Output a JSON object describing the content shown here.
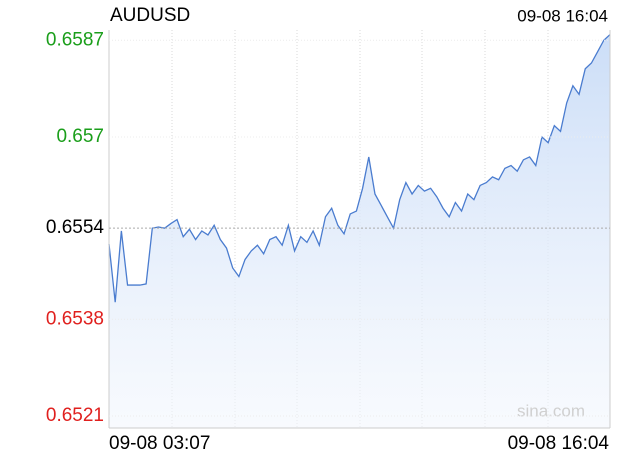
{
  "chart_data": {
    "type": "line",
    "title": "AUDUSD",
    "time": "09-08 16:04",
    "watermark": "sina.com",
    "x_labels": [
      "09-08 03:07",
      "09-08 16:04"
    ],
    "series": [
      {
        "name": "AUDUSD",
        "color": "#4a7ccf",
        "values": [
          0.65512,
          0.6541,
          0.65535,
          0.6544,
          0.6544,
          0.6544,
          0.65442,
          0.6554,
          0.65542,
          0.6554,
          0.65548,
          0.65555,
          0.65525,
          0.65538,
          0.6552,
          0.65535,
          0.65528,
          0.65545,
          0.6552,
          0.65505,
          0.6547,
          0.65455,
          0.65485,
          0.655,
          0.6551,
          0.65495,
          0.6552,
          0.65525,
          0.6551,
          0.65545,
          0.655,
          0.65525,
          0.65515,
          0.65535,
          0.6551,
          0.6556,
          0.65575,
          0.65545,
          0.6553,
          0.65565,
          0.6557,
          0.6561,
          0.65665,
          0.656,
          0.6558,
          0.6556,
          0.6554,
          0.6559,
          0.6562,
          0.656,
          0.65615,
          0.65605,
          0.6561,
          0.65595,
          0.65575,
          0.6556,
          0.65585,
          0.6557,
          0.656,
          0.6559,
          0.65615,
          0.6562,
          0.6563,
          0.65625,
          0.65645,
          0.6565,
          0.6564,
          0.6566,
          0.65665,
          0.6565,
          0.657,
          0.6569,
          0.6572,
          0.6571,
          0.6576,
          0.6579,
          0.65775,
          0.6582,
          0.6583,
          0.6585,
          0.6587,
          0.6588
        ]
      }
    ],
    "reference_line": 0.6554,
    "ylim": [
      0.65189,
      0.65888
    ],
    "yticks": [
      0.6587,
      0.657,
      0.6554,
      0.6538,
      0.6521
    ],
    "up_color": "#1a9e1a",
    "down_color": "#e0201e",
    "flat_color": "#000000",
    "grid": true
  }
}
